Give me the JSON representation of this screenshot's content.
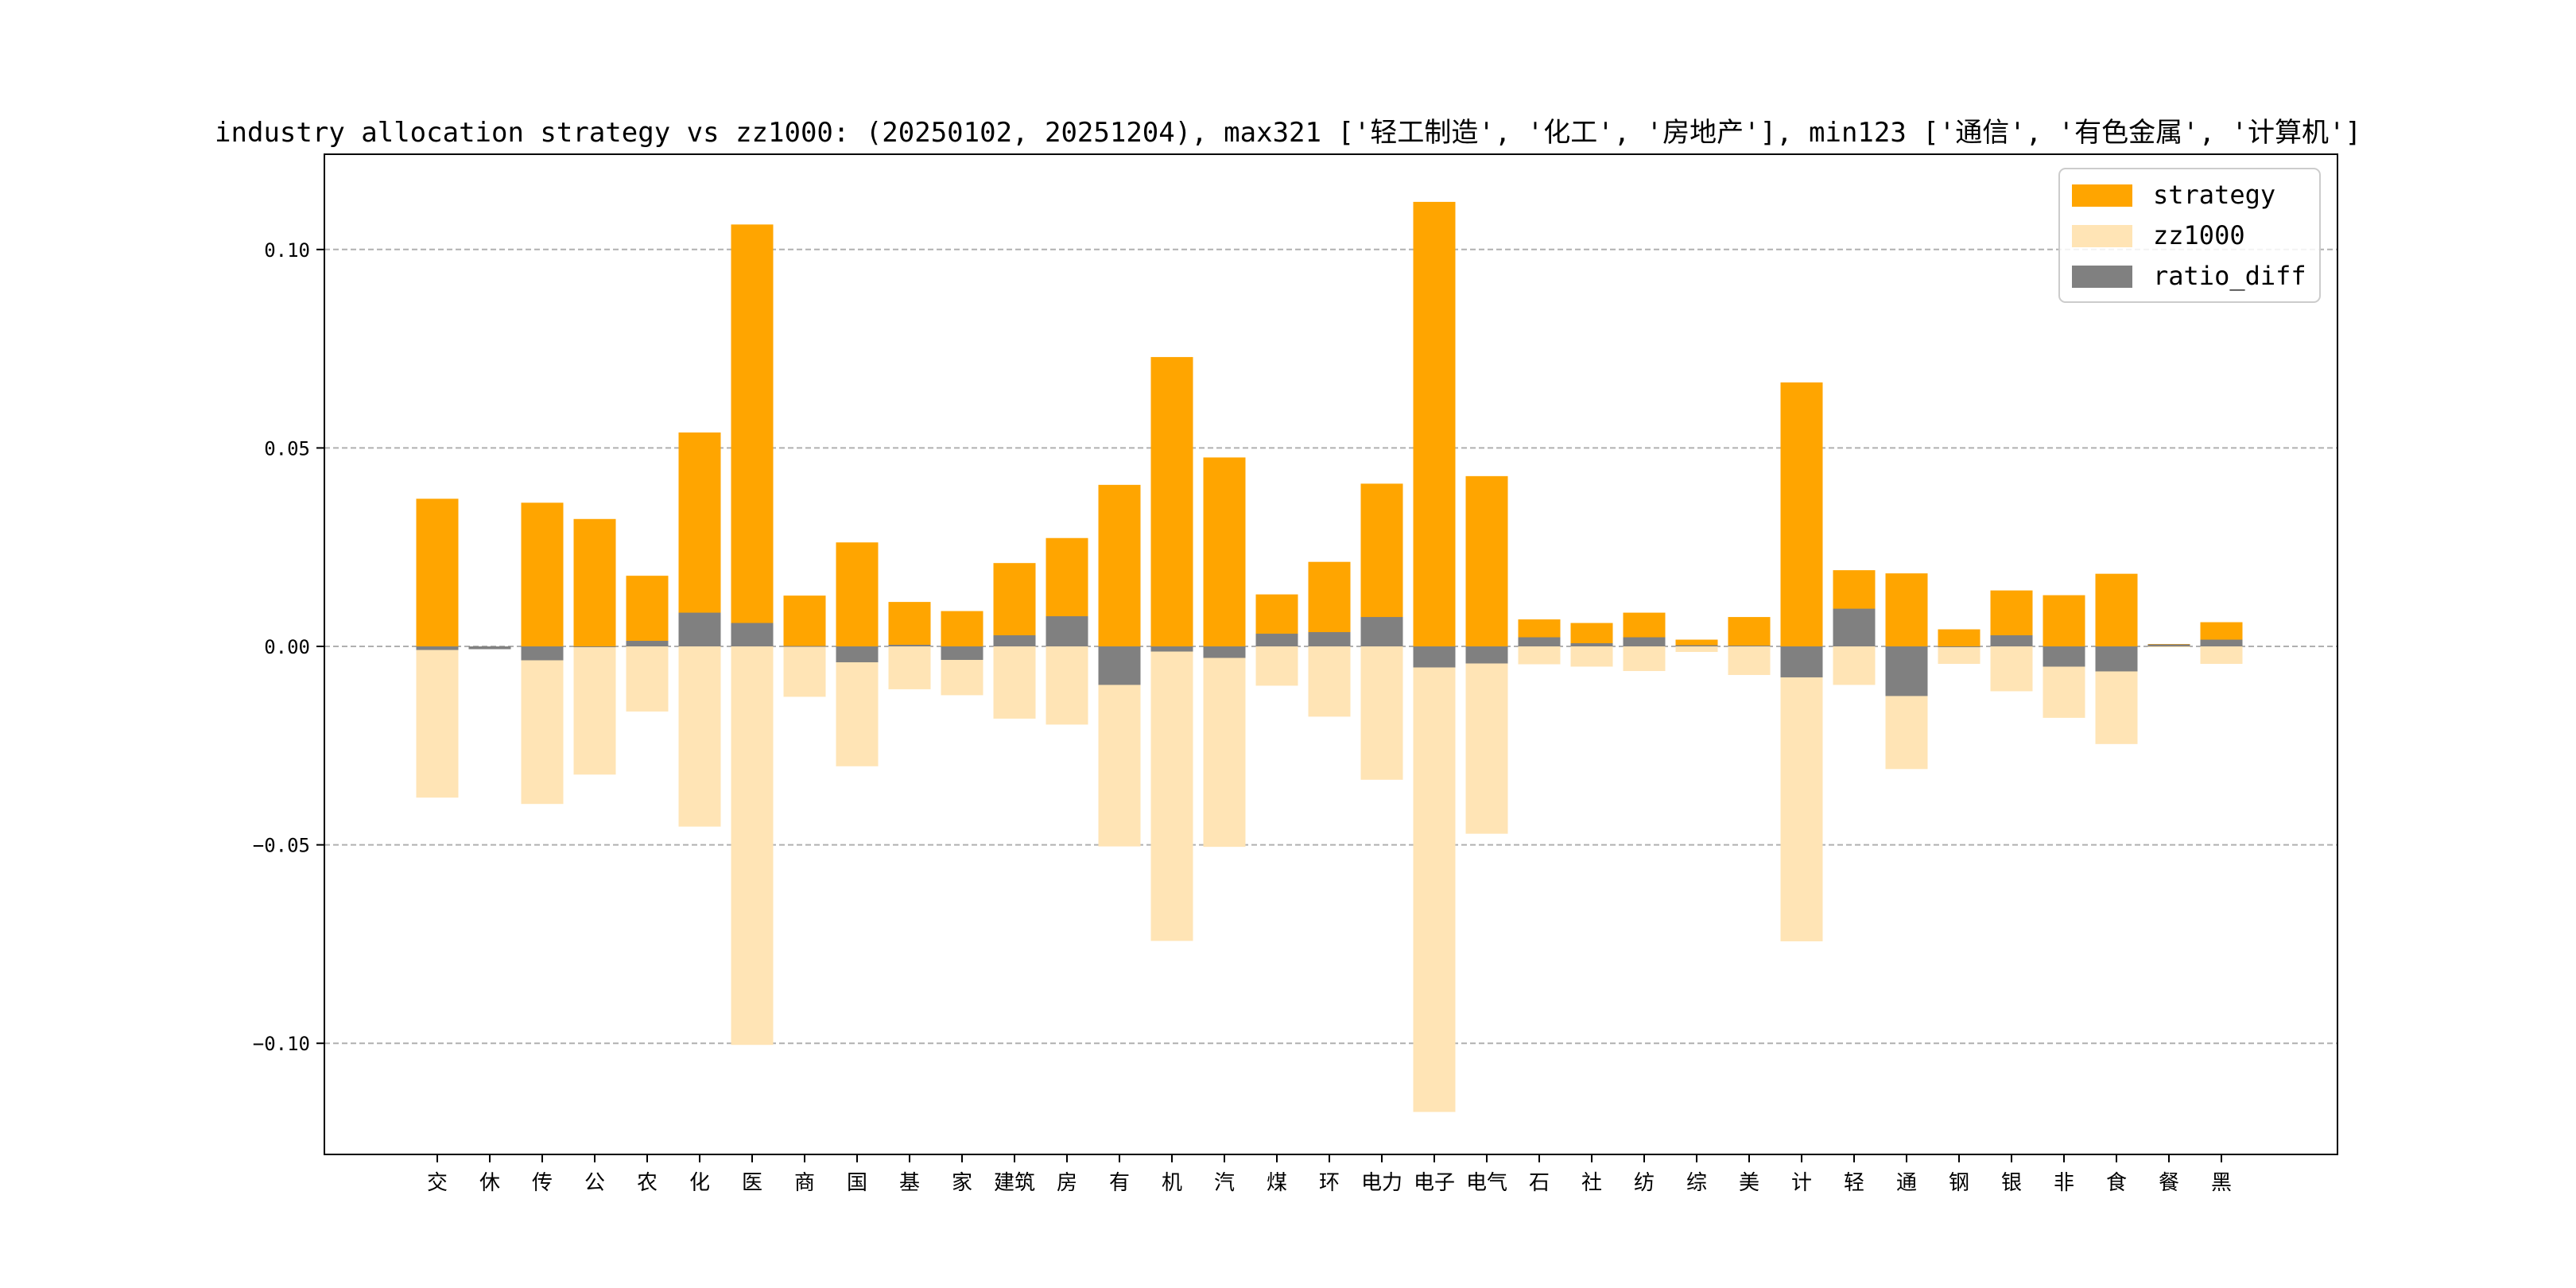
{
  "chart_data": {
    "type": "bar",
    "title": "industry allocation strategy vs zz1000: (20250102, 20251204), max321 ['轻工制造', '化工', '房地产'], min123 ['通信', '有色金属', '计算机']",
    "xlabel": "",
    "ylabel": "",
    "ylim": [
      -0.128,
      0.124
    ],
    "yticks": [
      -0.1,
      -0.05,
      0.0,
      0.05,
      0.1
    ],
    "ytick_labels": [
      "−0.10",
      "−0.05",
      "0.00",
      "0.05",
      "0.10"
    ],
    "grid": "y-dashed",
    "legend_position": "top-right",
    "categories": [
      "交",
      "休",
      "传",
      "公",
      "农",
      "化",
      "医",
      "商",
      "国",
      "基",
      "家",
      "建筑",
      "房",
      "有",
      "机",
      "汽",
      "煤",
      "环",
      "电力",
      "电子",
      "电气",
      "石",
      "社",
      "纺",
      "综",
      "美",
      "计",
      "轻",
      "通",
      "钢",
      "银",
      "非",
      "食",
      "餐",
      "黑"
    ],
    "series": [
      {
        "name": "strategy",
        "color": "#FFA500",
        "values": [
          0.0372,
          0.0,
          0.0362,
          0.0321,
          0.0178,
          0.0539,
          0.1063,
          0.0128,
          0.0262,
          0.0112,
          0.0089,
          0.021,
          0.0273,
          0.0407,
          0.0729,
          0.0476,
          0.0131,
          0.0213,
          0.041,
          0.112,
          0.0429,
          0.0068,
          0.0059,
          0.0085,
          0.0017,
          0.0074,
          0.0665,
          0.0192,
          0.0184,
          0.0043,
          0.0141,
          0.0129,
          0.0183,
          0.0006,
          0.0061
        ]
      },
      {
        "name": "zz1000",
        "color": "#FFE4B5",
        "values": [
          -0.0381,
          -0.0007,
          -0.0397,
          -0.0323,
          -0.0164,
          -0.0454,
          -0.1004,
          -0.0127,
          -0.0302,
          -0.0108,
          -0.0123,
          -0.0182,
          -0.0197,
          -0.0504,
          -0.0742,
          -0.0505,
          -0.0099,
          -0.0177,
          -0.0336,
          -0.1173,
          -0.0472,
          -0.0045,
          -0.0051,
          -0.0062,
          -0.0014,
          -0.0072,
          -0.0743,
          -0.0097,
          -0.0309,
          -0.0044,
          -0.0113,
          -0.018,
          -0.0246,
          -0.0001,
          -0.0044
        ]
      },
      {
        "name": "ratio_diff",
        "color": "#808080",
        "values": [
          -0.0009,
          -0.0007,
          -0.0035,
          -0.0002,
          0.0014,
          0.0085,
          0.0059,
          0.0001,
          -0.004,
          0.0004,
          -0.0034,
          0.0028,
          0.0076,
          -0.0097,
          -0.0013,
          -0.0029,
          0.0032,
          0.0036,
          0.0074,
          -0.0053,
          -0.0043,
          0.0023,
          0.0008,
          0.0023,
          0.0003,
          0.0002,
          -0.0078,
          0.0095,
          -0.0125,
          -0.0001,
          0.0028,
          -0.0051,
          -0.0063,
          0.0005,
          0.0017
        ]
      }
    ]
  }
}
